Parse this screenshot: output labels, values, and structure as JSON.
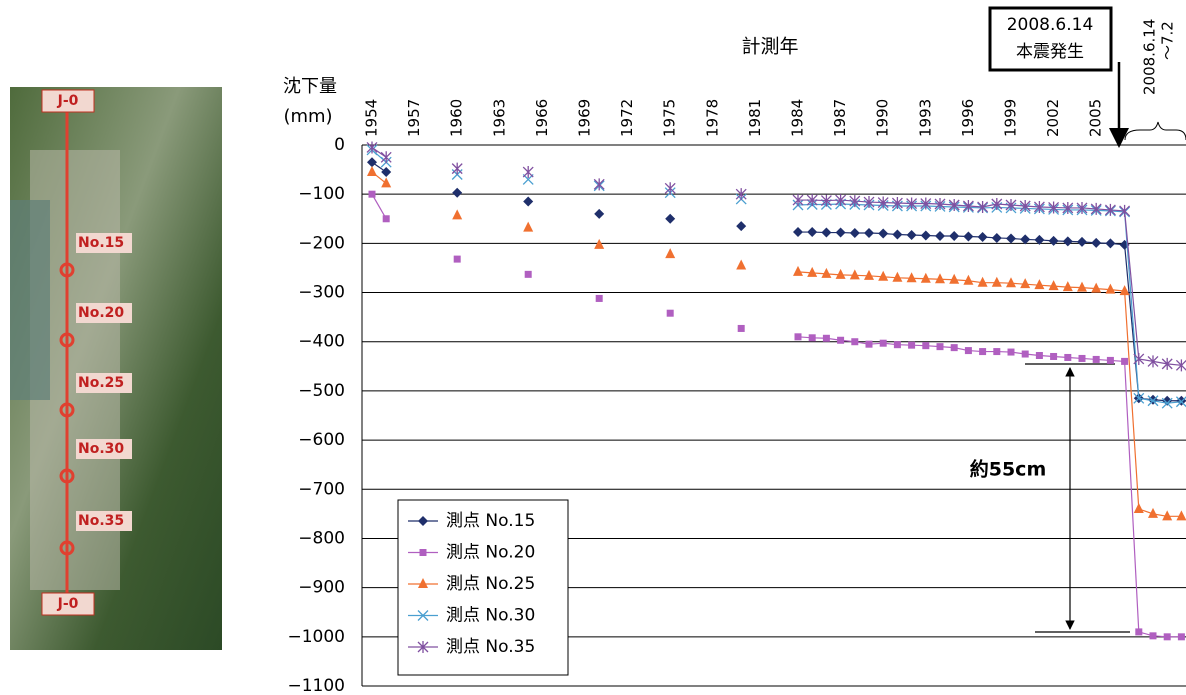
{
  "photo_labels": [
    "J-0",
    "No.15",
    "No.20",
    "No.25",
    "No.30",
    "No.35",
    "J-0"
  ],
  "chart_data": {
    "type": "line",
    "x_label": "計測年",
    "y_label": [
      "沈下量",
      "(mm)"
    ],
    "categories": [
      "1954",
      null,
      null,
      "1957",
      null,
      null,
      "1960",
      null,
      null,
      "1963",
      null,
      null,
      "1966",
      null,
      null,
      "1969",
      null,
      null,
      "1972",
      null,
      null,
      "1975",
      null,
      null,
      "1978",
      null,
      null,
      "1981",
      null,
      null,
      "1984",
      null,
      null,
      "1987",
      null,
      null,
      "1990",
      null,
      null,
      "1993",
      null,
      null,
      "1996",
      null,
      null,
      "1999",
      null,
      null,
      "2002",
      null,
      null,
      "2005",
      null,
      null,
      null,
      null,
      null,
      null
    ],
    "post_period_label": [
      "2008.6.14",
      "～7.2"
    ],
    "quake_label": [
      "2008.6.14",
      "本震発生"
    ],
    "measure_label": "約55cm",
    "ylim": [
      -1100,
      0
    ],
    "yticks": [
      0,
      {
        "value": -100,
        "label": "−100"
      },
      {
        "value": -200,
        "label": "−200"
      },
      {
        "value": -300,
        "label": "−300"
      },
      {
        "value": -400,
        "label": "−400"
      },
      {
        "value": -500,
        "label": "−500"
      },
      {
        "value": -600,
        "label": "−600"
      },
      {
        "value": -700,
        "label": "−700"
      },
      {
        "value": -800,
        "label": "−800"
      },
      {
        "value": -900,
        "label": "−900"
      },
      {
        "value": -1000,
        "label": "−1000"
      },
      {
        "value": -1100,
        "label": "−1100"
      }
    ],
    "grid": true,
    "legend": "lower-left",
    "series": [
      {
        "name": "測点 No.15",
        "color": "#1f2f6b",
        "marker": "diamond",
        "values": [
          -35,
          -55,
          null,
          null,
          null,
          null,
          -97,
          null,
          null,
          null,
          null,
          -115,
          null,
          null,
          null,
          null,
          -140,
          null,
          null,
          null,
          null,
          -150,
          null,
          null,
          null,
          null,
          -165,
          null,
          null,
          null,
          -177,
          -177,
          -178,
          -178,
          -179,
          -179,
          -180,
          -182,
          -183,
          -184,
          -185,
          -185,
          -186,
          -187,
          -189,
          -190,
          -192,
          -193,
          -195,
          -196,
          -197,
          -199,
          -200,
          -203,
          -515,
          -518,
          -520,
          -520
        ]
      },
      {
        "name": "測点 No.20",
        "color": "#b05fc0",
        "marker": "square",
        "values": [
          -100,
          -150,
          null,
          null,
          null,
          null,
          -232,
          null,
          null,
          null,
          null,
          -263,
          null,
          null,
          null,
          null,
          -312,
          null,
          null,
          null,
          null,
          -342,
          null,
          null,
          null,
          null,
          -373,
          null,
          null,
          null,
          -390,
          -392,
          -393,
          -397,
          -400,
          -405,
          -403,
          -406,
          -407,
          -408,
          -410,
          -412,
          -418,
          -420,
          -420,
          -421,
          -425,
          -428,
          -430,
          -432,
          -434,
          -436,
          -438,
          -440,
          -990,
          -998,
          -1000,
          -1000
        ]
      },
      {
        "name": "測点 No.25",
        "color": "#f07030",
        "marker": "triangle",
        "values": [
          -55,
          -78,
          null,
          null,
          null,
          null,
          -143,
          null,
          null,
          null,
          null,
          -168,
          null,
          null,
          null,
          null,
          -203,
          null,
          null,
          null,
          null,
          -222,
          null,
          null,
          null,
          null,
          -245,
          null,
          null,
          null,
          -258,
          -260,
          -262,
          -264,
          -265,
          -266,
          -268,
          -270,
          -271,
          -272,
          -273,
          -274,
          -276,
          -280,
          -280,
          -281,
          -283,
          -285,
          -287,
          -289,
          -290,
          -292,
          -294,
          -297,
          -740,
          -750,
          -755,
          -755
        ]
      },
      {
        "name": "測点 No.30",
        "color": "#4a9fd0",
        "marker": "x",
        "values": [
          -10,
          -35,
          null,
          null,
          null,
          null,
          -60,
          null,
          null,
          null,
          null,
          -70,
          null,
          null,
          null,
          null,
          -83,
          null,
          null,
          null,
          null,
          -97,
          null,
          null,
          null,
          null,
          -110,
          null,
          null,
          null,
          -122,
          -121,
          -121,
          -120,
          -121,
          -122,
          -123,
          -124,
          -124,
          -124,
          -125,
          -126,
          -127,
          -128,
          -127,
          -128,
          -129,
          -130,
          -131,
          -132,
          -132,
          -133,
          -134,
          -136,
          -515,
          -520,
          -525,
          -522
        ]
      },
      {
        "name": "測点 No.35",
        "color": "#8050a0",
        "marker": "star",
        "values": [
          -5,
          -25,
          null,
          null,
          null,
          null,
          -48,
          null,
          null,
          null,
          null,
          -55,
          null,
          null,
          null,
          null,
          -80,
          null,
          null,
          null,
          null,
          -88,
          null,
          null,
          null,
          null,
          -100,
          null,
          null,
          null,
          -112,
          -112,
          -113,
          -112,
          -114,
          -116,
          -117,
          -118,
          -119,
          -119,
          -120,
          -122,
          -124,
          -126,
          -120,
          -122,
          -124,
          -126,
          -127,
          -128,
          -128,
          -130,
          -132,
          -134,
          -435,
          -440,
          -445,
          -448
        ]
      }
    ]
  }
}
